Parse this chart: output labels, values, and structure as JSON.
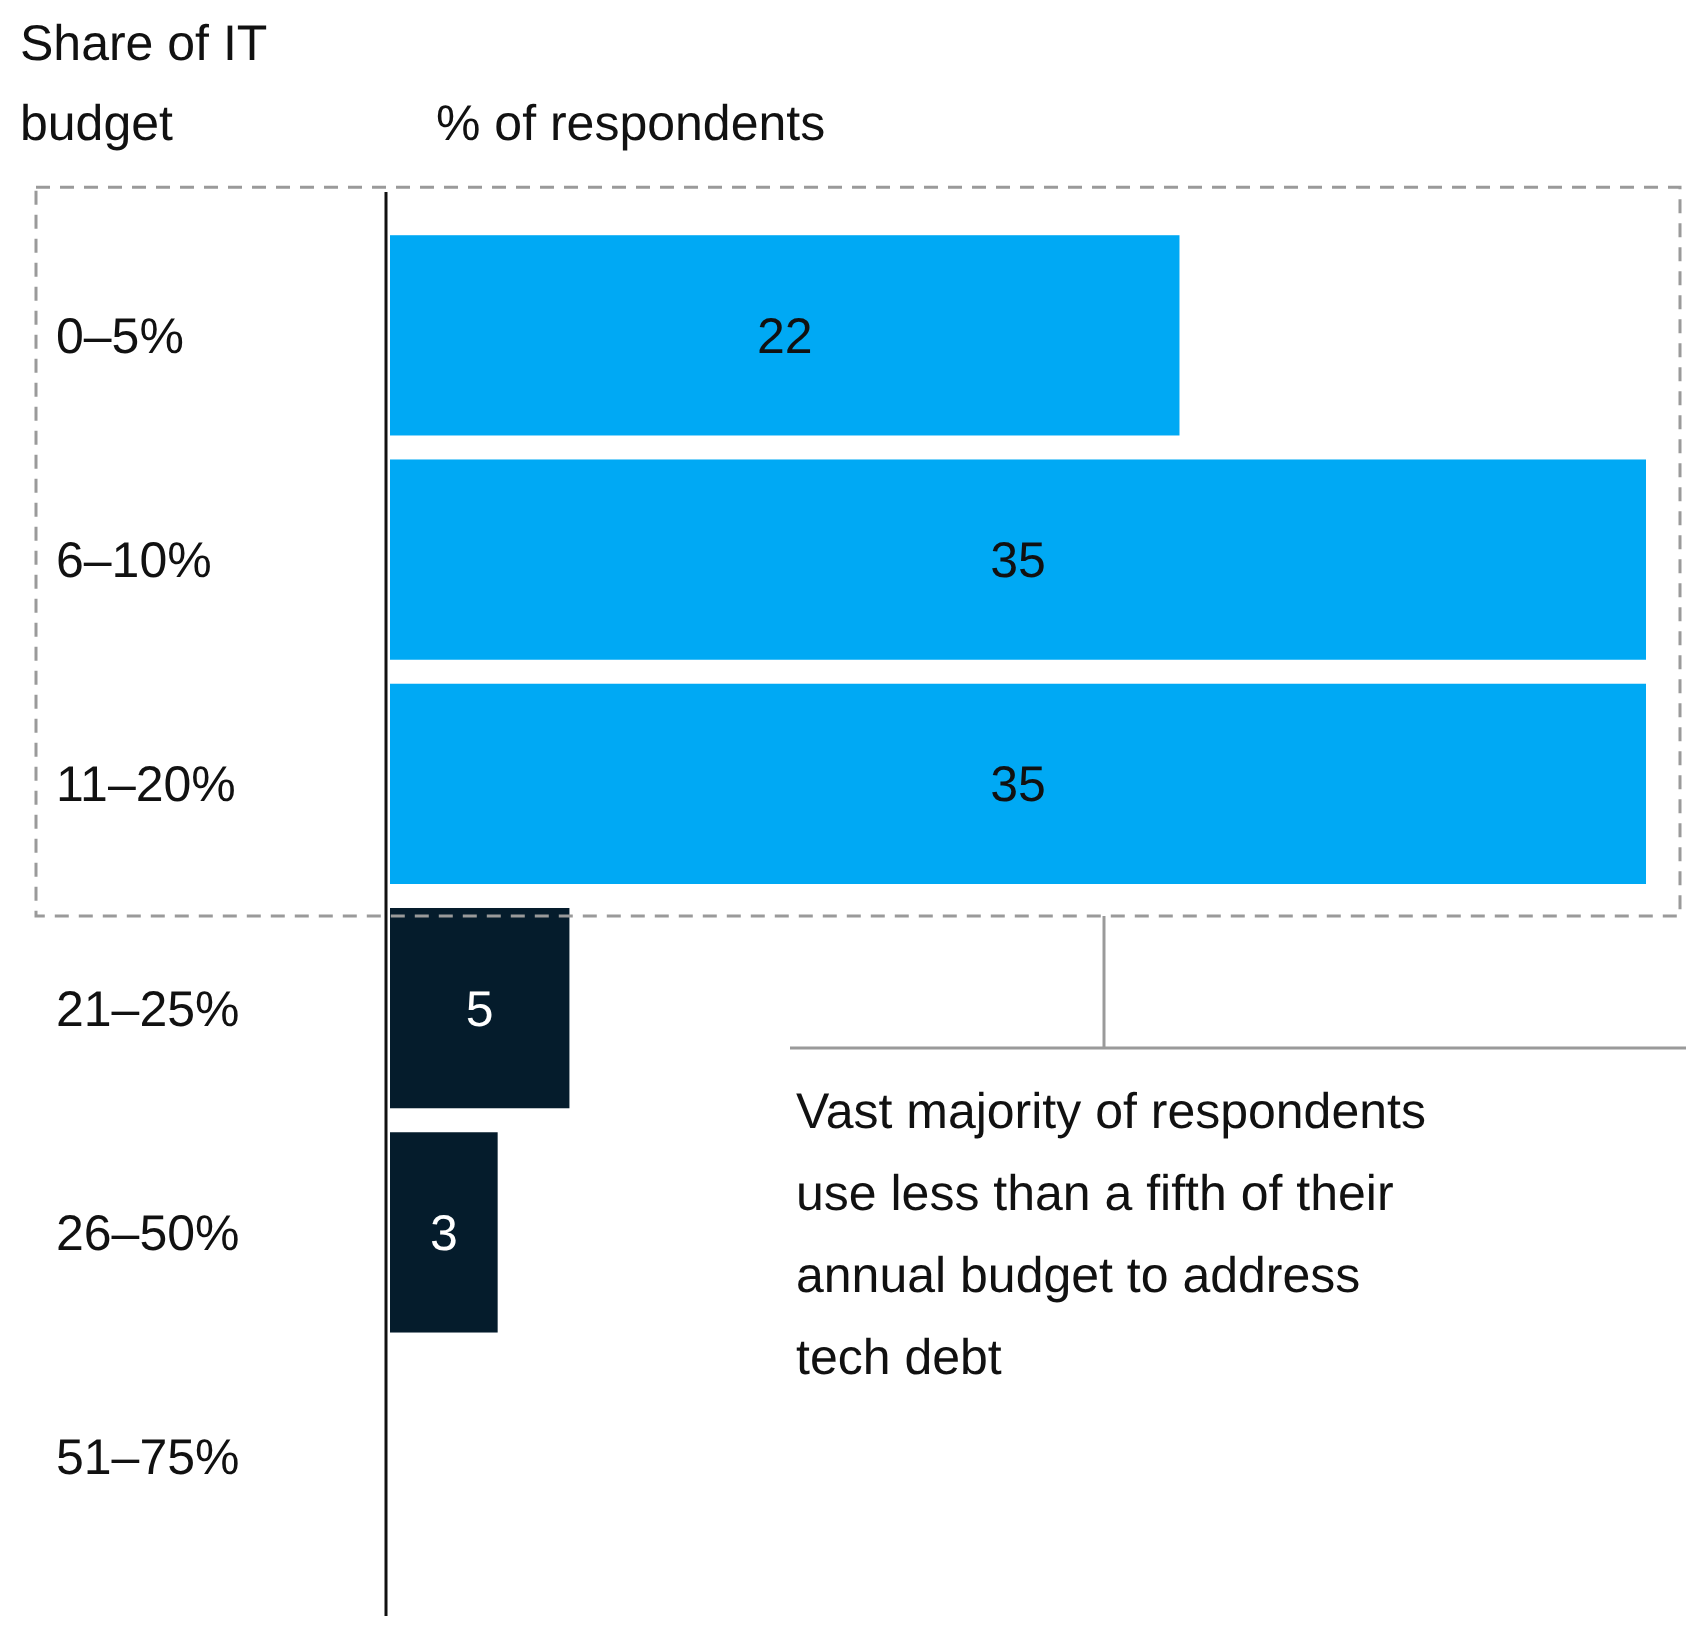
{
  "chart_data": {
    "type": "bar",
    "orientation": "horizontal",
    "ylabel": "Share of IT budget",
    "xlabel": "% of respondents",
    "categories": [
      "0–5%",
      "6–10%",
      "11–20%",
      "21–25%",
      "26–50%",
      "51–75%"
    ],
    "values": [
      22,
      35,
      35,
      5,
      3,
      null
    ],
    "colors": [
      "#00a9f4",
      "#00a9f4",
      "#00a9f4",
      "#051c2c",
      "#051c2c",
      "#051c2c"
    ],
    "data_labels": true,
    "annotations": [
      "Vast majority of respondents use less than a fifth of their annual budget to address tech debt"
    ]
  }
}
